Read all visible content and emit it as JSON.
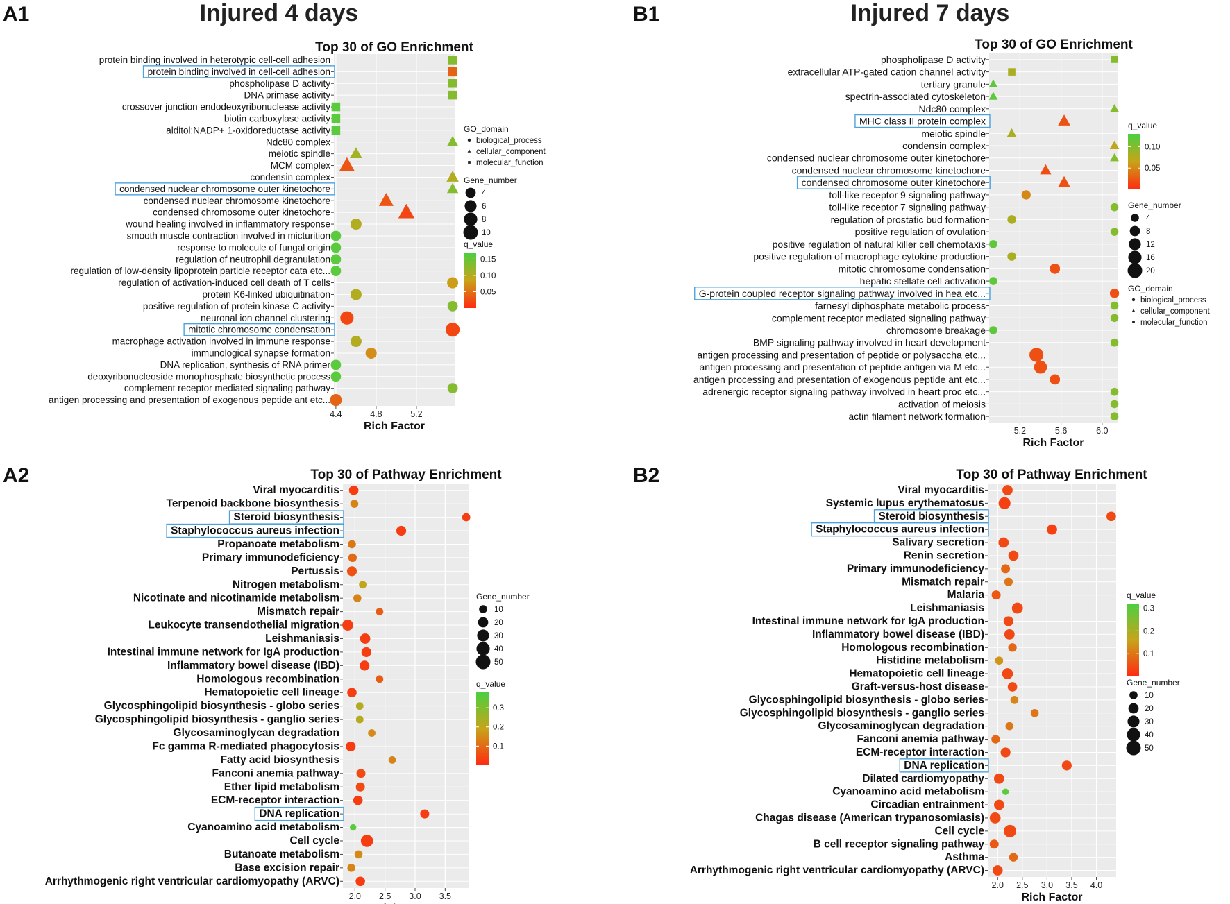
{
  "figure": {
    "titles": {
      "a": "Injured 4 days",
      "b": "Injured 7 days"
    },
    "panels": {
      "a1": "A1",
      "b1": "B1",
      "a2": "A2",
      "b2": "B2"
    }
  },
  "colors": {
    "q_low": "#ff2a10",
    "q_mid": "#c8a41a",
    "q_high": "#4ad040",
    "panel_bg": "#ebebeb",
    "grid": "#ffffff",
    "highlight": "#4aa3e0"
  },
  "chart_data": [
    {
      "id": "A1",
      "type": "scatter",
      "title": "Top 30 of GO Enrichment",
      "xlabel": "Rich Factor",
      "ylabel": "",
      "xlim": [
        4.38,
        5.58
      ],
      "xticks": [
        "4.4",
        "4.8",
        "5.2"
      ],
      "qmax": 0.17,
      "highlighted": [
        "protein binding involved in cell-cell adhesion",
        "condensed nuclear chromosome outer kinetochore",
        "mitotic chromosome condensation"
      ],
      "terms": [
        "protein binding involved in heterotypic cell-cell adhesion",
        "protein binding involved in cell-cell adhesion",
        "phospholipase D activity",
        "DNA primase activity",
        "crossover junction endodeoxyribonuclease activity",
        "biotin carboxylase activity",
        "alditol:NADP+ 1-oxidoreductase activity",
        "Ndc80 complex",
        "meiotic spindle",
        "MCM complex",
        "condensin complex",
        "condensed nuclear chromosome outer kinetochore",
        "condensed nuclear chromosome kinetochore",
        "condensed chromosome outer kinetochore",
        "wound healing involved in inflammatory response",
        "smooth muscle contraction involved in micturition",
        "response to molecule of fungal origin",
        "regulation of neutrophil degranulation",
        "regulation of low-density lipoprotein particle receptor cata etc...",
        "regulation of activation-induced cell death of T cells",
        "protein K6-linked ubiquitination",
        "positive regulation of protein kinase C activity",
        "neuronal ion channel clustering",
        "mitotic chromosome condensation",
        "macrophage activation involved in immune response",
        "immunological synapse formation",
        "DNA replication, synthesis of RNA primer",
        "deoxyribonucleoside monophosphate biosynthetic process",
        "complement receptor mediated signaling pathway",
        "antigen processing and presentation of exogenous peptide ant etc..."
      ],
      "x": [
        5.56,
        5.56,
        5.56,
        5.56,
        4.4,
        4.4,
        4.4,
        5.56,
        4.6,
        4.51,
        5.56,
        5.56,
        4.9,
        5.1,
        4.6,
        4.4,
        4.4,
        4.4,
        4.4,
        5.56,
        4.6,
        5.56,
        4.51,
        5.56,
        4.6,
        4.75,
        4.4,
        4.4,
        5.56,
        4.4
      ],
      "gene_number": [
        4,
        5,
        4,
        4,
        4,
        4,
        4,
        4,
        5,
        9,
        5,
        4,
        8,
        10,
        5,
        4,
        4,
        4,
        4,
        5,
        5,
        4,
        8,
        9,
        5,
        5,
        4,
        4,
        4,
        6
      ],
      "q_value": [
        0.13,
        0.04,
        0.13,
        0.13,
        0.16,
        0.16,
        0.16,
        0.13,
        0.11,
        0.03,
        0.1,
        0.13,
        0.03,
        0.02,
        0.1,
        0.16,
        0.16,
        0.16,
        0.16,
        0.08,
        0.1,
        0.13,
        0.02,
        0.02,
        0.1,
        0.07,
        0.16,
        0.16,
        0.13,
        0.04
      ],
      "domain": [
        "molecular_function",
        "molecular_function",
        "molecular_function",
        "molecular_function",
        "molecular_function",
        "molecular_function",
        "molecular_function",
        "cellular_component",
        "cellular_component",
        "cellular_component",
        "cellular_component",
        "cellular_component",
        "cellular_component",
        "cellular_component",
        "biological_process",
        "biological_process",
        "biological_process",
        "biological_process",
        "biological_process",
        "biological_process",
        "biological_process",
        "biological_process",
        "biological_process",
        "biological_process",
        "biological_process",
        "biological_process",
        "biological_process",
        "biological_process",
        "biological_process",
        "biological_process"
      ],
      "legend": {
        "domain": {
          "title": "GO_domain",
          "items": [
            "biological_process",
            "cellular_component",
            "molecular_function"
          ]
        },
        "size": {
          "title": "Gene_number",
          "items": [
            "4",
            "6",
            "8",
            "10"
          ]
        },
        "color": {
          "title": "q_value",
          "ticks": [
            "0.15",
            "0.10",
            "0.05"
          ]
        }
      }
    },
    {
      "id": "B1",
      "type": "scatter",
      "title": "Top 30 of GO Enrichment",
      "xlabel": "Rich Factor",
      "ylabel": "",
      "xlim": [
        4.9,
        6.15
      ],
      "xticks": [
        "5.2",
        "5.6",
        "6.0"
      ],
      "qmax": 0.13,
      "highlighted": [
        "MHC class II protein complex",
        "condensed chromosome outer kinetochore",
        "G-protein coupled receptor signaling pathway involved in hea etc..."
      ],
      "terms": [
        "phospholipase D activity",
        "extracellular ATP-gated cation channel activity",
        "tertiary granule",
        "spectrin-associated cytoskeleton",
        "Ndc80 complex",
        "MHC class II protein complex",
        "meiotic spindle",
        "condensin complex",
        "condensed nuclear chromosome outer kinetochore",
        "condensed nuclear chromosome kinetochore",
        "condensed chromosome outer kinetochore",
        "toll-like receptor 9 signaling pathway",
        "toll-like receptor 7 signaling pathway",
        "regulation of prostatic bud formation",
        "positive regulation of ovulation",
        "positive regulation of natural killer cell chemotaxis",
        "positive regulation of macrophage cytokine production",
        "mitotic chromosome condensation",
        "hepatic stellate cell activation",
        "G-protein coupled receptor signaling pathway involved in hea etc...",
        "farnesyl diphosphate metabolic process",
        "complement receptor mediated signaling pathway",
        "chromosome breakage",
        "BMP signaling pathway involved in heart development",
        "antigen processing and presentation of peptide or polysaccha etc...",
        "antigen processing and presentation of peptide antigen via M etc...",
        "antigen processing and presentation of exogenous peptide ant etc...",
        "adrenergic receptor signaling pathway involved in heart proc etc...",
        "activation of meiosis",
        "actin filament network formation"
      ],
      "x": [
        6.12,
        5.12,
        4.94,
        4.94,
        6.12,
        5.63,
        5.12,
        6.12,
        6.12,
        5.45,
        5.63,
        5.26,
        6.12,
        5.12,
        6.12,
        4.94,
        5.12,
        5.54,
        4.94,
        6.12,
        6.12,
        6.12,
        4.94,
        6.12,
        5.36,
        5.4,
        5.54,
        6.12,
        6.12,
        6.12
      ],
      "gene_number": [
        4,
        5,
        4,
        4,
        4,
        10,
        5,
        5,
        4,
        8,
        10,
        6,
        4,
        5,
        4,
        4,
        5,
        8,
        4,
        6,
        4,
        4,
        4,
        4,
        18,
        15,
        8,
        4,
        4,
        4
      ],
      "q_value": [
        0.1,
        0.08,
        0.12,
        0.12,
        0.1,
        0.02,
        0.08,
        0.07,
        0.1,
        0.02,
        0.02,
        0.05,
        0.1,
        0.08,
        0.1,
        0.12,
        0.08,
        0.02,
        0.12,
        0.02,
        0.1,
        0.1,
        0.12,
        0.1,
        0.02,
        0.02,
        0.02,
        0.1,
        0.1,
        0.1
      ],
      "domain": [
        "molecular_function",
        "molecular_function",
        "cellular_component",
        "cellular_component",
        "cellular_component",
        "cellular_component",
        "cellular_component",
        "cellular_component",
        "cellular_component",
        "cellular_component",
        "cellular_component",
        "biological_process",
        "biological_process",
        "biological_process",
        "biological_process",
        "biological_process",
        "biological_process",
        "biological_process",
        "biological_process",
        "biological_process",
        "biological_process",
        "biological_process",
        "biological_process",
        "biological_process",
        "biological_process",
        "biological_process",
        "biological_process",
        "biological_process",
        "biological_process",
        "biological_process"
      ],
      "legend": {
        "color": {
          "title": "q_value",
          "ticks": [
            "0.10",
            "0.05"
          ]
        },
        "size": {
          "title": "Gene_number",
          "items": [
            "4",
            "8",
            "12",
            "16",
            "20"
          ]
        },
        "domain": {
          "title": "GO_domain",
          "items": [
            "biological_process",
            "cellular_component",
            "molecular_function"
          ]
        }
      }
    },
    {
      "id": "A2",
      "type": "scatter",
      "title": "Top 30 of Pathway Enrichment",
      "xlabel": "Rich Factor",
      "ylabel": "",
      "xlim": [
        1.8,
        3.9
      ],
      "xticks": [
        "2.0",
        "2.5",
        "3.0",
        "3.5"
      ],
      "qmax": 0.38,
      "highlighted": [
        "Steroid biosynthesis",
        "Staphylococcus aureus infection",
        "DNA replication"
      ],
      "terms": [
        "Viral myocarditis",
        "Terpenoid backbone biosynthesis",
        "Steroid biosynthesis",
        "Staphylococcus aureus infection",
        "Propanoate metabolism",
        "Primary immunodeficiency",
        "Pertussis",
        "Nitrogen metabolism",
        "Nicotinate and nicotinamide metabolism",
        "Mismatch repair",
        "Leukocyte transendothelial migration",
        "Leishmaniasis",
        "Intestinal immune network for IgA production",
        "Inflammatory bowel disease (IBD)",
        "Homologous recombination",
        "Hematopoietic cell lineage",
        "Glycosphingolipid biosynthesis - globo series",
        "Glycosphingolipid biosynthesis - ganglio series",
        "Glycosaminoglycan degradation",
        "Fc gamma R-mediated phagocytosis",
        "Fatty acid biosynthesis",
        "Fanconi anemia pathway",
        "Ether lipid metabolism",
        "ECM-receptor interaction",
        "DNA replication",
        "Cyanoamino acid metabolism",
        "Cell cycle",
        "Butanoate metabolism",
        "Base excision repair",
        "Arrhythmogenic right ventricular cardiomyopathy (ARVC)"
      ],
      "x": [
        1.98,
        1.99,
        3.85,
        2.77,
        1.95,
        1.96,
        1.95,
        2.13,
        2.04,
        2.41,
        1.88,
        2.17,
        2.19,
        2.16,
        2.41,
        1.95,
        2.08,
        2.08,
        2.28,
        1.93,
        2.62,
        2.1,
        2.09,
        2.05,
        3.16,
        1.97,
        2.2,
        2.06,
        1.94,
        2.09
      ],
      "gene_number": [
        16,
        10,
        10,
        18,
        10,
        12,
        18,
        8,
        10,
        8,
        24,
        20,
        18,
        18,
        8,
        16,
        8,
        8,
        8,
        18,
        8,
        14,
        14,
        16,
        14,
        5,
        32,
        10,
        10,
        16
      ],
      "q_value": [
        0.03,
        0.14,
        0.03,
        0.03,
        0.12,
        0.1,
        0.06,
        0.2,
        0.14,
        0.08,
        0.03,
        0.03,
        0.03,
        0.03,
        0.08,
        0.03,
        0.22,
        0.22,
        0.15,
        0.03,
        0.14,
        0.05,
        0.05,
        0.03,
        0.03,
        0.36,
        0.03,
        0.15,
        0.14,
        0.03
      ],
      "legend": {
        "size": {
          "title": "Gene_number",
          "items": [
            "10",
            "20",
            "30",
            "40",
            "50"
          ]
        },
        "color": {
          "title": "q_value",
          "ticks": [
            "0.3",
            "0.2",
            "0.1"
          ]
        }
      }
    },
    {
      "id": "B2",
      "type": "scatter",
      "title": "Top 30 of Pathway Enrichment",
      "xlabel": "Rich Factor",
      "ylabel": "",
      "xlim": [
        1.8,
        4.4
      ],
      "xticks": [
        "2.0",
        "2.5",
        "3.0",
        "3.5",
        "4.0"
      ],
      "qmax": 0.32,
      "highlighted": [
        "Steroid biosynthesis",
        "Staphylococcus aureus infection",
        "DNA replication"
      ],
      "terms": [
        "Viral myocarditis",
        "Systemic lupus erythematosus",
        "Steroid biosynthesis",
        "Staphylococcus aureus infection",
        "Salivary secretion",
        "Renin secretion",
        "Primary immunodeficiency",
        "Mismatch repair",
        "Malaria",
        "Leishmaniasis",
        "Intestinal immune network for IgA production",
        "Inflammatory bowel disease (IBD)",
        "Homologous recombination",
        "Histidine metabolism",
        "Hematopoietic cell lineage",
        "Graft-versus-host disease",
        "Glycosphingolipid biosynthesis - globo series",
        "Glycosphingolipid biosynthesis - ganglio series",
        "Glycosaminoglycan degradation",
        "Fanconi anemia pathway",
        "ECM-receptor interaction",
        "DNA replication",
        "Dilated cardiomyopathy",
        "Cyanoamino acid metabolism",
        "Circadian entrainment",
        "Chagas disease (American trypanosomiasis)",
        "Cell cycle",
        "B cell receptor signaling pathway",
        "Asthma",
        "Arrhythmogenic right ventricular cardiomyopathy (ARVC)"
      ],
      "x": [
        2.2,
        2.14,
        4.3,
        3.1,
        2.12,
        2.32,
        2.16,
        2.22,
        1.97,
        2.4,
        2.22,
        2.24,
        2.3,
        2.03,
        2.2,
        2.3,
        2.34,
        2.75,
        2.24,
        1.96,
        2.16,
        3.4,
        2.03,
        2.16,
        2.03,
        1.95,
        2.25,
        1.93,
        2.32,
        2.0
      ],
      "gene_number": [
        20,
        30,
        16,
        20,
        20,
        20,
        14,
        12,
        14,
        24,
        18,
        20,
        12,
        10,
        24,
        16,
        10,
        10,
        10,
        12,
        18,
        18,
        20,
        5,
        20,
        24,
        34,
        14,
        12,
        20
      ],
      "q_value": [
        0.04,
        0.03,
        0.04,
        0.03,
        0.04,
        0.04,
        0.08,
        0.1,
        0.06,
        0.04,
        0.04,
        0.04,
        0.08,
        0.14,
        0.04,
        0.04,
        0.12,
        0.1,
        0.1,
        0.08,
        0.04,
        0.04,
        0.04,
        0.3,
        0.04,
        0.04,
        0.04,
        0.06,
        0.08,
        0.04
      ],
      "legend": {
        "color": {
          "title": "q_value",
          "ticks": [
            "0.3",
            "0.2",
            "0.1"
          ]
        },
        "size": {
          "title": "Gene_number",
          "items": [
            "10",
            "20",
            "30",
            "40",
            "50"
          ]
        }
      }
    }
  ]
}
